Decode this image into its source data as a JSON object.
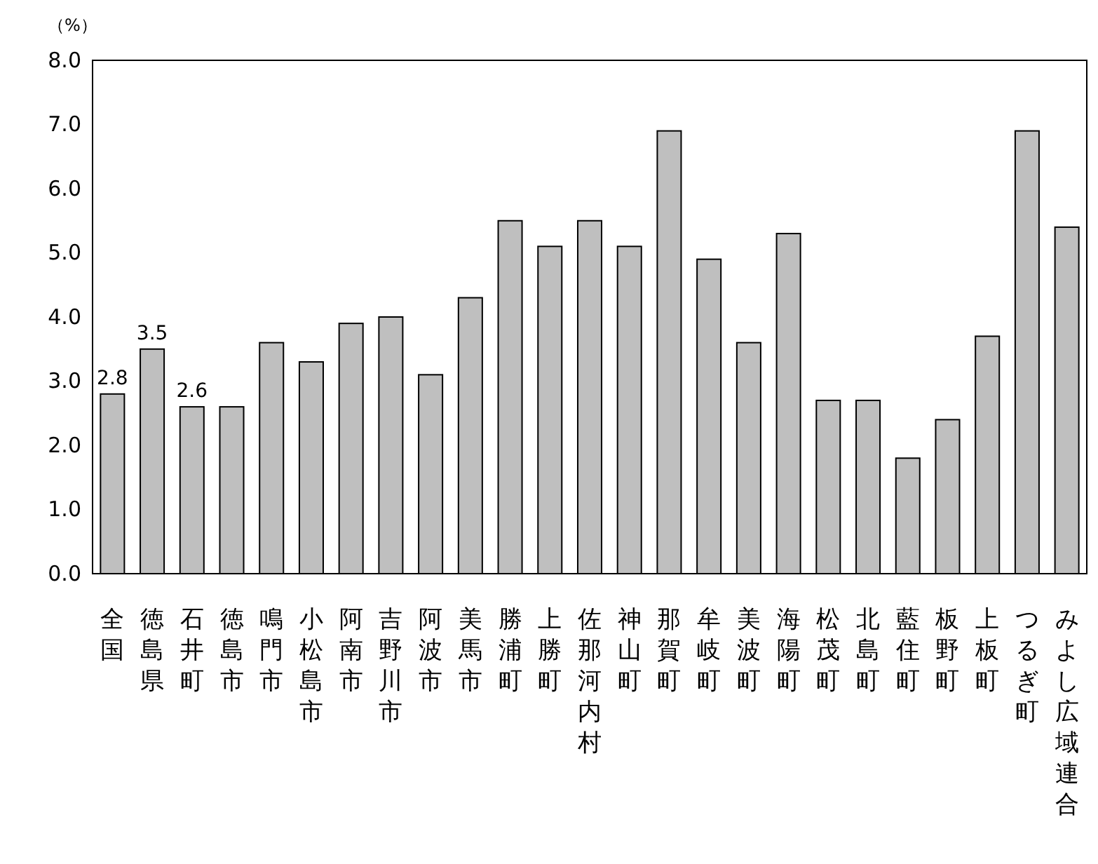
{
  "chart_data": {
    "type": "bar",
    "ylabel": "（%）",
    "categories": [
      "全国",
      "徳島県",
      "石井町",
      "徳島市",
      "鳴門市",
      "小松島市",
      "阿南市",
      "吉野川市",
      "阿波市",
      "美馬市",
      "勝浦町",
      "上勝町",
      "佐那河内村",
      "神山町",
      "那賀町",
      "牟岐町",
      "美波町",
      "海陽町",
      "松茂町",
      "北島町",
      "藍住町",
      "板野町",
      "上板町",
      "つるぎ町",
      "みよし広域連合"
    ],
    "values": [
      2.8,
      3.5,
      2.6,
      2.6,
      3.6,
      3.3,
      3.9,
      4.0,
      3.1,
      4.3,
      5.5,
      5.1,
      5.5,
      5.1,
      6.9,
      4.9,
      3.6,
      5.3,
      2.7,
      2.7,
      1.8,
      2.4,
      3.7,
      6.9,
      5.4
    ],
    "value_labels": [
      "2.8",
      "3.5",
      "2.6",
      null,
      null,
      null,
      null,
      null,
      null,
      null,
      null,
      null,
      null,
      null,
      null,
      null,
      null,
      null,
      null,
      null,
      null,
      null,
      null,
      null,
      null
    ],
    "color": "#bfbfbf",
    "ylim": [
      0,
      8
    ],
    "yticks": [
      {
        "value": 0,
        "label": "0.0"
      },
      {
        "value": 1,
        "label": "1.0"
      },
      {
        "value": 2,
        "label": "2.0"
      },
      {
        "value": 3,
        "label": "3.0"
      },
      {
        "value": 4,
        "label": "4.0"
      },
      {
        "value": 5,
        "label": "5.0"
      },
      {
        "value": 6,
        "label": "6.0"
      },
      {
        "value": 7,
        "label": "7.0"
      },
      {
        "value": 8,
        "label": "8.0"
      }
    ],
    "grid": false
  }
}
